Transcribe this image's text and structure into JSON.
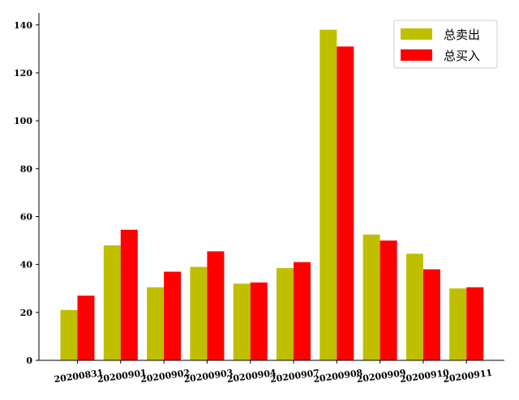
{
  "chart_data": {
    "type": "bar",
    "categories": [
      "20200831",
      "20200901",
      "20200902",
      "20200903",
      "20200904",
      "20200907",
      "20200908",
      "20200909",
      "20200910",
      "20200911"
    ],
    "series": [
      {
        "name": "总卖出",
        "color": "#bfbf00",
        "values": [
          21,
          48,
          30.5,
          39,
          32,
          38.5,
          138,
          52.5,
          44.5,
          30
        ]
      },
      {
        "name": "总买入",
        "color": "#ff0000",
        "values": [
          27,
          54.5,
          37,
          45.5,
          32.5,
          41,
          131,
          50,
          38,
          30.5
        ]
      }
    ],
    "yticks": [
      0,
      20,
      40,
      60,
      80,
      100,
      120,
      140
    ],
    "ylim": [
      0,
      145
    ],
    "title": "",
    "xlabel": "",
    "ylabel": "",
    "legend_position": "top-right",
    "grid": false
  }
}
